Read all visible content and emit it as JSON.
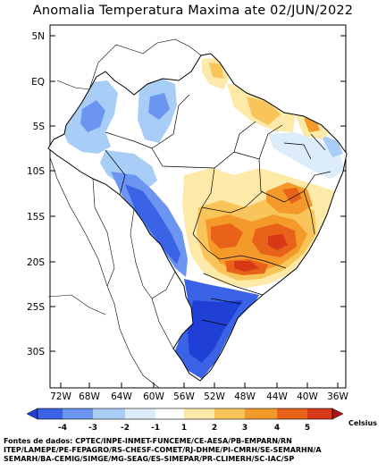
{
  "title": "Anomalia Temperatura Maxima ate 02/JUN/2022",
  "y_axis_labels": [
    "5N",
    "EQ",
    "5S",
    "10S",
    "15S",
    "20S",
    "25S",
    "30S"
  ],
  "x_axis_labels": [
    "72W",
    "68W",
    "64W",
    "60W",
    "56W",
    "52W",
    "48W",
    "44W",
    "40W",
    "36W"
  ],
  "legend": {
    "labels": [
      "-4",
      "-3",
      "-2",
      "-1",
      "1",
      "2",
      "3",
      "4",
      "5"
    ],
    "unit": "Celsius",
    "colors": [
      "#1f3fd6",
      "#3b63e6",
      "#6b95f0",
      "#a8cdf7",
      "#dcecfb",
      "#ffffff",
      "#fde9a8",
      "#f9c45a",
      "#f39a2a",
      "#e8621a",
      "#d63818",
      "#b01410"
    ]
  },
  "footer_lines": [
    "Fontes de dados: CPTEC/INPE-INMET-FUNCEME/CE-AESA/PB-EMPARN/RN",
    "ITEP/LAMEPE/PE-FEPAGRO/RS-CHESF-COMET/RJ-DHME/PI-CMRH/SE-SEMARHN/A",
    "SEMARH/BA-CEMIG/SIMGE/MG-SEAG/ES-SIMEPAR/PR-CLIMERH/SC-IAC/SP"
  ]
}
